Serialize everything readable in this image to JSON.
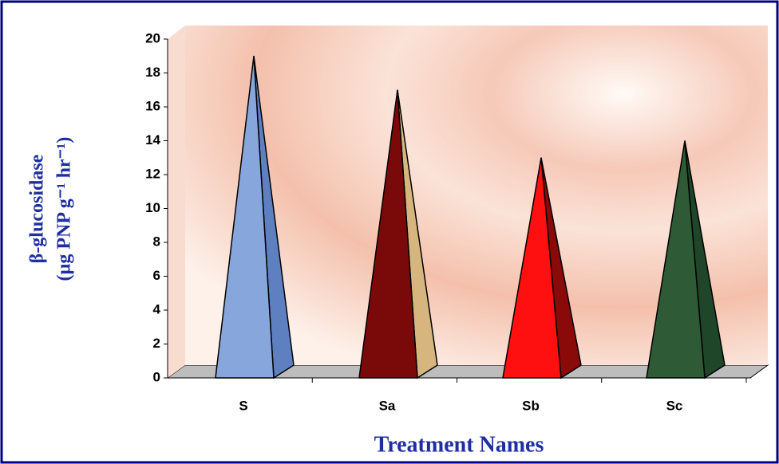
{
  "chart_data": {
    "type": "pyramid",
    "y_label": [
      "β-glucosidase",
      "(µg PNP g⁻¹ hr⁻¹)"
    ],
    "x_label": "Treatment Names",
    "categories": [
      "S",
      "Sa",
      "Sb",
      "Sc"
    ],
    "values": [
      19,
      17,
      13,
      14
    ],
    "colors": [
      "#86a6dc",
      "#7a0a0a",
      "#ff1010",
      "#2e5a36"
    ],
    "side_colors": [
      "#5f80c0",
      "#d6b57e",
      "#8a0a0a",
      "#1f4628"
    ],
    "ylim": [
      0,
      20
    ],
    "yticks": [
      0,
      2,
      4,
      6,
      8,
      10,
      12,
      14,
      16,
      18,
      20
    ]
  }
}
